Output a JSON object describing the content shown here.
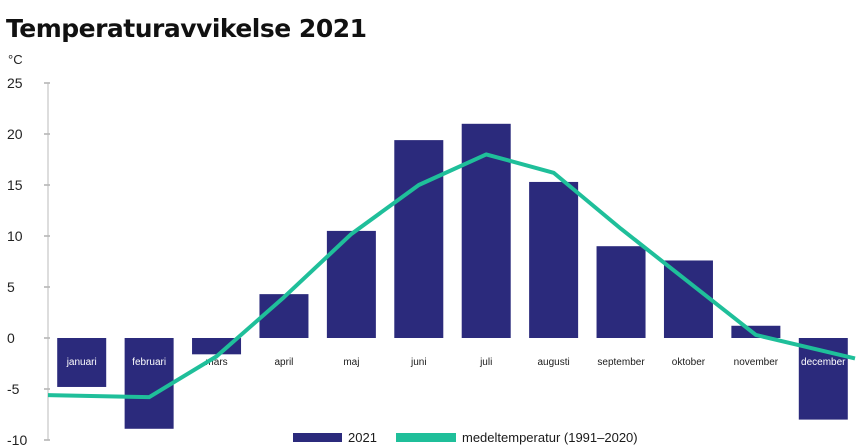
{
  "chart_data": {
    "type": "bar",
    "title": "Temperaturavvikelse 2021",
    "ylabel": "°C",
    "ylim": [
      -10,
      25
    ],
    "yticks": [
      25,
      20,
      15,
      10,
      5,
      0,
      -5,
      -10
    ],
    "categories": [
      "januari",
      "februari",
      "mars",
      "april",
      "maj",
      "juni",
      "juli",
      "augusti",
      "september",
      "oktober",
      "november",
      "december"
    ],
    "series": [
      {
        "name": "2021",
        "type": "bar",
        "color": "#2b2a7c",
        "values": [
          -4.8,
          -8.9,
          -1.6,
          4.3,
          10.5,
          19.4,
          21.0,
          15.3,
          9.0,
          7.6,
          1.2,
          -8.0
        ]
      },
      {
        "name": "medeltemperatur (1991–2020)",
        "type": "line",
        "color": "#1fbf9a",
        "values": [
          -5.6,
          -5.8,
          -1.8,
          4.0,
          10.2,
          15.0,
          18.0,
          16.2,
          10.7,
          5.5,
          0.3,
          -2.0
        ]
      }
    ],
    "legend_position": "bottom",
    "grid": false
  }
}
